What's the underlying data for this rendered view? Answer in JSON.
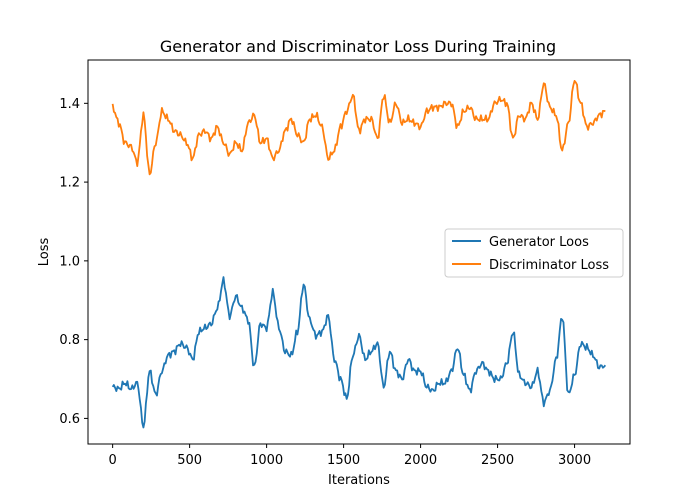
{
  "chart_data": {
    "type": "line",
    "title": "Generator and Discriminator Loss During Training",
    "xlabel": "Iterations",
    "ylabel": "Loss",
    "xlim": [
      -160,
      3360
    ],
    "ylim": [
      0.535,
      1.51
    ],
    "xticks": [
      0,
      500,
      1000,
      1500,
      2000,
      2500,
      3000
    ],
    "yticks": [
      0.6,
      0.8,
      1.0,
      1.2,
      1.4
    ],
    "ytick_labels": [
      "0.6",
      "0.8",
      "1.0",
      "1.2",
      "1.4"
    ],
    "grid": false,
    "legend_position": "center-right",
    "series": [
      {
        "name": "Generator Loos",
        "color": "#1f77b4",
        "x": [
          0,
          40,
          80,
          120,
          160,
          200,
          240,
          280,
          320,
          360,
          400,
          440,
          480,
          520,
          560,
          600,
          640,
          680,
          720,
          760,
          800,
          840,
          880,
          920,
          960,
          1000,
          1040,
          1080,
          1120,
          1160,
          1200,
          1240,
          1280,
          1320,
          1360,
          1400,
          1440,
          1480,
          1520,
          1560,
          1600,
          1640,
          1680,
          1720,
          1760,
          1800,
          1840,
          1880,
          1920,
          1960,
          2000,
          2040,
          2080,
          2120,
          2160,
          2200,
          2240,
          2280,
          2320,
          2360,
          2400,
          2440,
          2480,
          2520,
          2560,
          2600,
          2640,
          2680,
          2720,
          2760,
          2800,
          2840,
          2880,
          2920,
          2960,
          3000,
          3040,
          3080,
          3120,
          3160,
          3200
        ],
        "y": [
          0.68,
          0.675,
          0.69,
          0.675,
          0.69,
          0.58,
          0.72,
          0.66,
          0.72,
          0.76,
          0.77,
          0.79,
          0.78,
          0.75,
          0.82,
          0.83,
          0.84,
          0.88,
          0.95,
          0.86,
          0.91,
          0.88,
          0.85,
          0.73,
          0.84,
          0.83,
          0.92,
          0.83,
          0.77,
          0.76,
          0.82,
          0.94,
          0.85,
          0.81,
          0.82,
          0.86,
          0.75,
          0.7,
          0.65,
          0.76,
          0.81,
          0.75,
          0.77,
          0.79,
          0.68,
          0.77,
          0.72,
          0.7,
          0.75,
          0.72,
          0.72,
          0.68,
          0.67,
          0.69,
          0.69,
          0.72,
          0.78,
          0.71,
          0.67,
          0.72,
          0.74,
          0.72,
          0.7,
          0.7,
          0.74,
          0.82,
          0.71,
          0.69,
          0.68,
          0.72,
          0.64,
          0.67,
          0.75,
          0.86,
          0.66,
          0.71,
          0.79,
          0.78,
          0.76,
          0.73,
          0.735
        ]
      },
      {
        "name": "Discriminator Loss",
        "color": "#ff7f0e",
        "x": [
          0,
          40,
          80,
          120,
          160,
          200,
          240,
          280,
          320,
          360,
          400,
          440,
          480,
          520,
          560,
          600,
          640,
          680,
          720,
          760,
          800,
          840,
          880,
          920,
          960,
          1000,
          1040,
          1080,
          1120,
          1160,
          1200,
          1240,
          1280,
          1320,
          1360,
          1400,
          1440,
          1480,
          1520,
          1560,
          1600,
          1640,
          1680,
          1720,
          1760,
          1800,
          1840,
          1880,
          1920,
          1960,
          2000,
          2040,
          2080,
          2120,
          2160,
          2200,
          2240,
          2280,
          2320,
          2360,
          2400,
          2440,
          2480,
          2520,
          2560,
          2600,
          2640,
          2680,
          2720,
          2760,
          2800,
          2840,
          2880,
          2920,
          2960,
          3000,
          3040,
          3080,
          3120,
          3160,
          3200
        ],
        "y": [
          1.39,
          1.35,
          1.3,
          1.29,
          1.25,
          1.37,
          1.22,
          1.3,
          1.38,
          1.36,
          1.33,
          1.32,
          1.3,
          1.26,
          1.32,
          1.33,
          1.31,
          1.34,
          1.3,
          1.27,
          1.3,
          1.28,
          1.35,
          1.37,
          1.3,
          1.31,
          1.26,
          1.28,
          1.33,
          1.36,
          1.32,
          1.3,
          1.36,
          1.37,
          1.34,
          1.26,
          1.28,
          1.34,
          1.38,
          1.42,
          1.33,
          1.36,
          1.36,
          1.31,
          1.42,
          1.35,
          1.4,
          1.35,
          1.36,
          1.35,
          1.34,
          1.38,
          1.39,
          1.39,
          1.4,
          1.4,
          1.34,
          1.38,
          1.39,
          1.36,
          1.36,
          1.36,
          1.4,
          1.41,
          1.4,
          1.31,
          1.37,
          1.36,
          1.4,
          1.36,
          1.45,
          1.39,
          1.37,
          1.28,
          1.35,
          1.46,
          1.4,
          1.34,
          1.35,
          1.37,
          1.38
        ]
      }
    ]
  }
}
